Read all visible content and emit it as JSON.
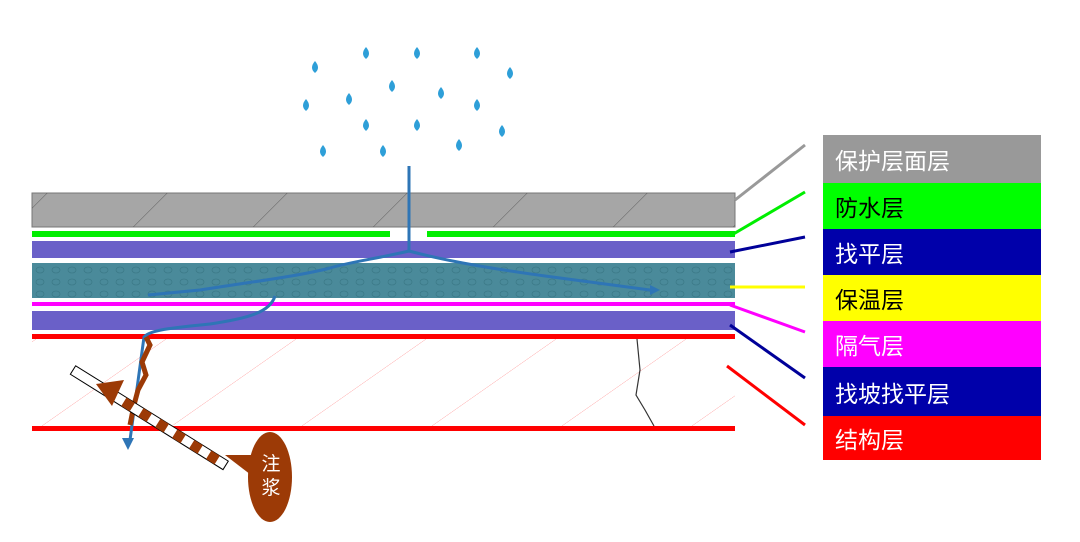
{
  "legend": [
    {
      "label": "保护层面层",
      "bg": "#999999",
      "fg": "#ffffff",
      "line": "#999999"
    },
    {
      "label": "防水层",
      "bg": "#00ff00",
      "fg": "#000000",
      "line": "#00ee00"
    },
    {
      "label": "找平层",
      "bg": "#0000aa",
      "fg": "#ffffff",
      "line": "#000099"
    },
    {
      "label": "保温层",
      "bg": "#ffff00",
      "fg": "#000000",
      "line": "#ffff00"
    },
    {
      "label": "隔气层",
      "bg": "#ff00ff",
      "fg": "#ffffff",
      "line": "#ff00ff"
    },
    {
      "label": "找坡找平层",
      "bg": "#0000aa",
      "fg": "#ffffff",
      "line": "#000099"
    },
    {
      "label": "结构层",
      "bg": "#ff0000",
      "fg": "#ffffff",
      "line": "#ff0000"
    }
  ],
  "grout_label": "注浆",
  "colors": {
    "water": "#2e75b6",
    "grout": "#9c3a06",
    "insulation": "#4a8a9a",
    "screed": "#6a60c8",
    "protection": "#a6a6a6"
  }
}
